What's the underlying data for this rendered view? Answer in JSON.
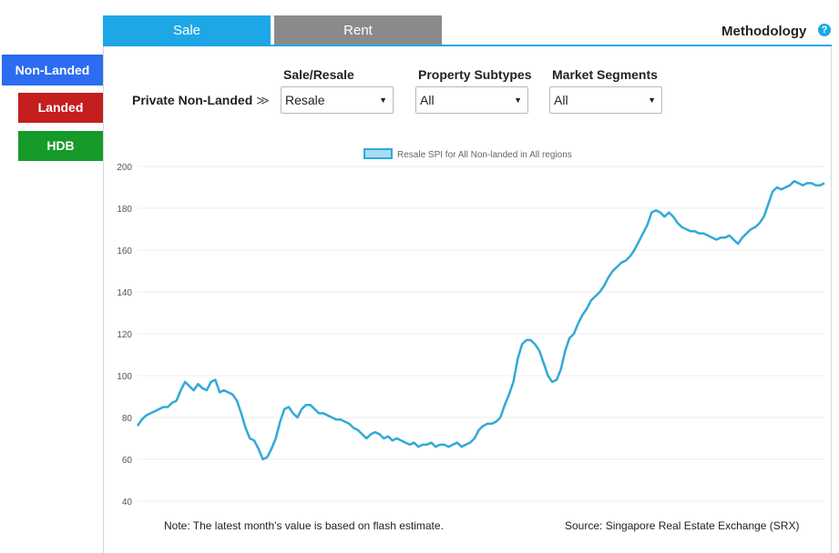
{
  "tabs": [
    {
      "label": "Sale",
      "active": true
    },
    {
      "label": "Rent",
      "active": false
    }
  ],
  "methodology": {
    "label": "Methodology",
    "icon": "question-icon",
    "icon_glyph": "?"
  },
  "sidebar": {
    "items": [
      {
        "label": "Non-Landed",
        "color": "#2b6cf0",
        "active": true
      },
      {
        "label": "Landed",
        "color": "#c41e1e"
      },
      {
        "label": "HDB",
        "color": "#169a2a"
      }
    ]
  },
  "filters": {
    "breadcrumb": "Private Non-Landed",
    "breadcrumb_glyph": "≫",
    "sale_resale": {
      "label": "Sale/Resale",
      "value": "Resale"
    },
    "property_subtypes": {
      "label": "Property Subtypes",
      "value": "All"
    },
    "market_segments": {
      "label": "Market Segments",
      "value": "All"
    },
    "dropdown_glyph": "▼"
  },
  "footer": {
    "note": "Note: The latest month's value is based on flash estimate.",
    "source": "Source: Singapore Real Estate Exchange (SRX)"
  },
  "chart_data": {
    "type": "line",
    "ylim": [
      40,
      200
    ],
    "yticks": [
      40,
      60,
      80,
      100,
      120,
      140,
      160,
      180,
      200
    ],
    "grid": true,
    "legend_position": "top-center",
    "series": [
      {
        "name": "Resale SPI for All Non-landed in All regions",
        "color": "#31a9d8",
        "values": [
          76,
          79,
          81,
          82,
          83,
          84,
          85,
          85,
          87,
          88,
          93,
          97,
          95,
          93,
          96,
          94,
          93,
          97,
          98,
          92,
          93,
          92,
          91,
          88,
          82,
          75,
          70,
          69,
          65,
          60,
          61,
          65,
          70,
          78,
          84,
          85,
          82,
          80,
          84,
          86,
          86,
          84,
          82,
          82,
          81,
          80,
          79,
          79,
          78,
          77,
          75,
          74,
          72,
          70,
          72,
          73,
          72,
          70,
          71,
          69,
          70,
          69,
          68,
          67,
          68,
          66,
          67,
          67,
          68,
          66,
          67,
          67,
          66,
          67,
          68,
          66,
          67,
          68,
          70,
          74,
          76,
          77,
          77,
          78,
          80,
          86,
          91,
          97,
          108,
          115,
          117,
          117,
          115,
          112,
          106,
          100,
          97,
          98,
          103,
          112,
          118,
          120,
          125,
          129,
          132,
          136,
          138,
          140,
          143,
          147,
          150,
          152,
          154,
          155,
          157,
          160,
          164,
          168,
          172,
          178,
          179,
          178,
          176,
          178,
          176,
          173,
          171,
          170,
          169,
          169,
          168,
          168,
          167,
          166,
          165,
          166,
          166,
          167,
          165,
          163,
          166,
          168,
          170,
          171,
          173,
          176,
          182,
          188,
          190,
          189,
          190,
          191,
          193,
          192,
          191,
          192,
          192,
          191,
          191,
          192
        ]
      }
    ]
  }
}
